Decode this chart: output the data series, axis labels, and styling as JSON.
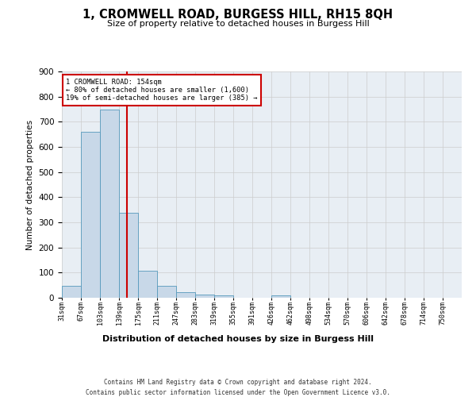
{
  "title": "1, CROMWELL ROAD, BURGESS HILL, RH15 8QH",
  "subtitle": "Size of property relative to detached houses in Burgess Hill",
  "xlabel": "Distribution of detached houses by size in Burgess Hill",
  "ylabel": "Number of detached properties",
  "footnote1": "Contains HM Land Registry data © Crown copyright and database right 2024.",
  "footnote2": "Contains public sector information licensed under the Open Government Licence v3.0.",
  "bar_labels": [
    "31sqm",
    "67sqm",
    "103sqm",
    "139sqm",
    "175sqm",
    "211sqm",
    "247sqm",
    "283sqm",
    "319sqm",
    "355sqm",
    "391sqm",
    "426sqm",
    "462sqm",
    "498sqm",
    "534sqm",
    "570sqm",
    "606sqm",
    "642sqm",
    "678sqm",
    "714sqm",
    "750sqm"
  ],
  "bar_heights": [
    48,
    660,
    750,
    338,
    108,
    48,
    22,
    14,
    10,
    0,
    0,
    8,
    0,
    0,
    0,
    0,
    0,
    0,
    0,
    0,
    0
  ],
  "bar_color": "#c8d8e8",
  "bar_edge_color": "#5599bb",
  "grid_color": "#cccccc",
  "bg_color": "#e8eef4",
  "property_line_color": "#cc0000",
  "annotation_line1": "1 CROMWELL ROAD: 154sqm",
  "annotation_line2": "← 80% of detached houses are smaller (1,600)",
  "annotation_line3": "19% of semi-detached houses are larger (385) →",
  "annotation_box_color": "#cc0000",
  "ylim": [
    0,
    900
  ],
  "xlim_start": 31,
  "bin_width": 36,
  "num_bins": 21,
  "property_line_x": 154
}
